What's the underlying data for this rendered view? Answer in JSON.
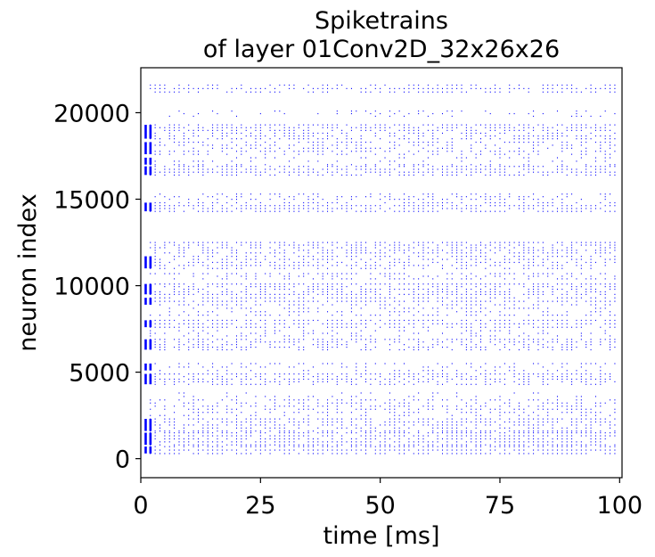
{
  "chart_data": {
    "type": "scatter",
    "title_lines": [
      "Spiketrains",
      "of layer 01Conv2D_32x26x26"
    ],
    "xlabel": "time [ms]",
    "ylabel": "neuron index",
    "xlim": [
      0,
      100.5
    ],
    "ylim": [
      -1100,
      22600
    ],
    "xticks": [
      0,
      25,
      50,
      75,
      100
    ],
    "yticks": [
      0,
      5000,
      10000,
      15000,
      20000
    ],
    "grid": false,
    "marker_color": "#0000ff",
    "early_burst_times_ms": [
      1.0,
      2.0
    ],
    "regular_spike_interval_ms": 1.0,
    "regular_spike_range_ms": [
      2,
      99
    ],
    "neuron_bands": [
      {
        "y0": 300,
        "y1": 700,
        "rate": 0.9,
        "early": true
      },
      {
        "y0": 800,
        "y1": 1500,
        "rate": 0.85,
        "early": true
      },
      {
        "y0": 1600,
        "y1": 2300,
        "rate": 0.8,
        "early": true
      },
      {
        "y0": 2500,
        "y1": 3400,
        "rate": 0.6,
        "early": false
      },
      {
        "y0": 3600,
        "y1": 3800,
        "rate": 0.2,
        "early": false
      },
      {
        "y0": 4300,
        "y1": 4900,
        "rate": 0.85,
        "early": true
      },
      {
        "y0": 5100,
        "y1": 5500,
        "rate": 0.5,
        "early": true
      },
      {
        "y0": 6300,
        "y1": 6900,
        "rate": 0.75,
        "early": true
      },
      {
        "y0": 7100,
        "y1": 7400,
        "rate": 0.4,
        "early": false
      },
      {
        "y0": 7600,
        "y1": 8000,
        "rate": 0.85,
        "early": true
      },
      {
        "y0": 8300,
        "y1": 8700,
        "rate": 0.6,
        "early": false
      },
      {
        "y0": 8900,
        "y1": 9300,
        "rate": 0.85,
        "early": true
      },
      {
        "y0": 9500,
        "y1": 10100,
        "rate": 0.9,
        "early": true
      },
      {
        "y0": 10400,
        "y1": 10700,
        "rate": 0.6,
        "early": false
      },
      {
        "y0": 11000,
        "y1": 11700,
        "rate": 0.75,
        "early": true
      },
      {
        "y0": 11900,
        "y1": 12500,
        "rate": 0.85,
        "early": false
      },
      {
        "y0": 14300,
        "y1": 14800,
        "rate": 0.85,
        "early": true
      },
      {
        "y0": 15000,
        "y1": 15300,
        "rate": 0.5,
        "early": false
      },
      {
        "y0": 16400,
        "y1": 16900,
        "rate": 0.9,
        "early": true
      },
      {
        "y0": 17000,
        "y1": 17400,
        "rate": 0.5,
        "early": true
      },
      {
        "y0": 17600,
        "y1": 18300,
        "rate": 0.6,
        "early": true
      },
      {
        "y0": 18500,
        "y1": 19300,
        "rate": 0.8,
        "early": true
      },
      {
        "y0": 19800,
        "y1": 20100,
        "rate": 0.25,
        "early": false
      },
      {
        "y0": 21200,
        "y1": 21600,
        "rate": 0.85,
        "early": false
      }
    ]
  }
}
